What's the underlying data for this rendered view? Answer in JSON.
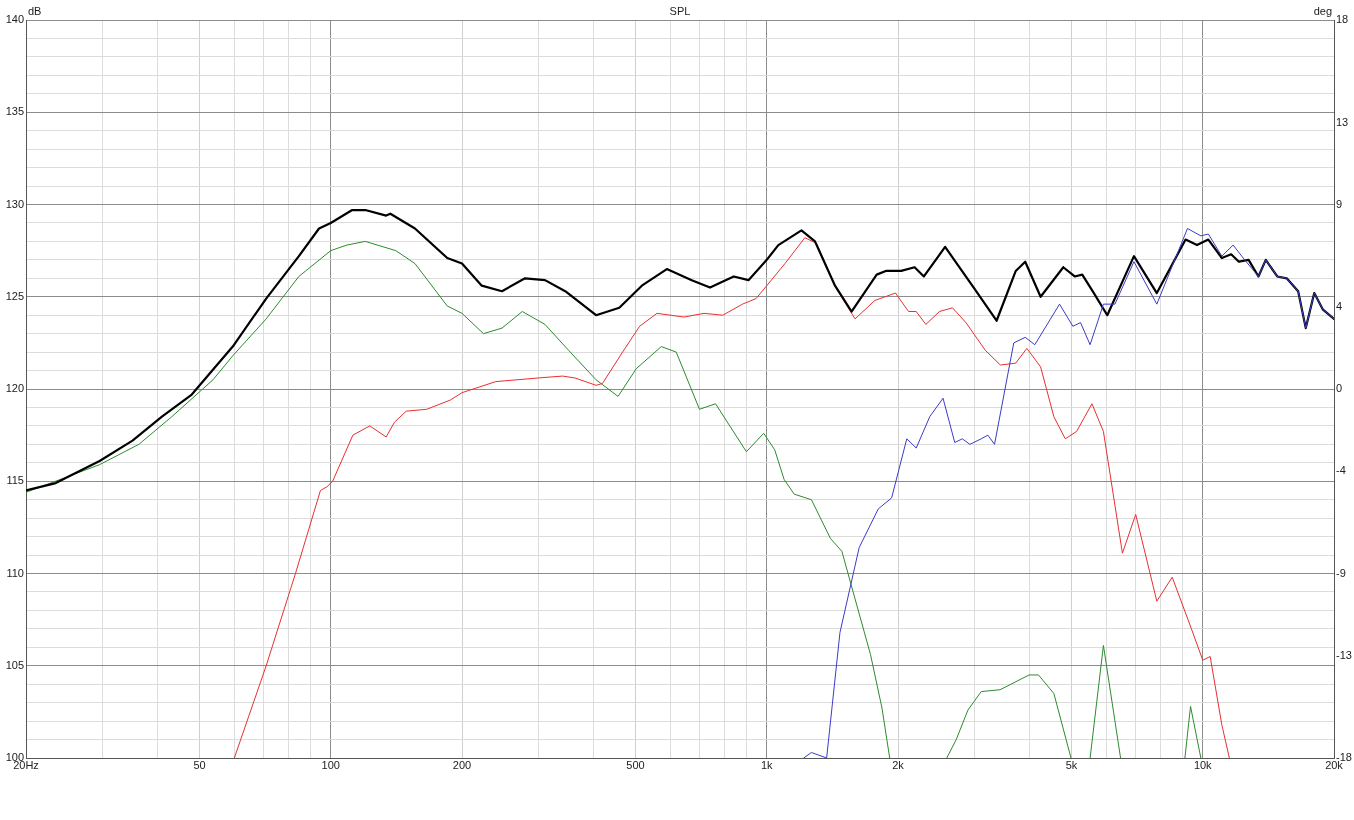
{
  "chart_data": {
    "type": "line",
    "title": "SPL",
    "ylabel": "dB",
    "y2label": "deg",
    "log": "x",
    "grid": true,
    "marker": "none",
    "line_style": "solid",
    "xlim": [
      20,
      20000
    ],
    "xticks": [
      {
        "value": 20,
        "label": "20Hz"
      },
      {
        "value": 30,
        "label": null
      },
      {
        "value": 40,
        "label": null
      },
      50,
      {
        "value": 60,
        "label": null
      },
      {
        "value": 70,
        "label": null
      },
      {
        "value": 80,
        "label": null
      },
      {
        "value": 90,
        "label": null
      },
      100,
      200,
      {
        "value": 300,
        "label": null
      },
      {
        "value": 400,
        "label": null
      },
      500,
      {
        "value": 600,
        "label": null
      },
      {
        "value": 700,
        "label": null
      },
      {
        "value": 800,
        "label": null
      },
      {
        "value": 900,
        "label": null
      },
      {
        "value": 1000,
        "label": "1k"
      },
      {
        "value": 2000,
        "label": "2k"
      },
      {
        "value": 3000,
        "label": null
      },
      {
        "value": 4000,
        "label": null
      },
      {
        "value": 5000,
        "label": "5k"
      },
      {
        "value": 6000,
        "label": null
      },
      {
        "value": 7000,
        "label": null
      },
      {
        "value": 8000,
        "label": null
      },
      {
        "value": 9000,
        "label": null
      },
      {
        "value": 10000,
        "label": "10k"
      },
      {
        "value": 20000,
        "label": "20k"
      }
    ],
    "ylim": [
      100,
      140
    ],
    "yticks": [
      100,
      {
        "value": 101,
        "label": null
      },
      {
        "value": 102,
        "label": null
      },
      {
        "value": 103,
        "label": null
      },
      {
        "value": 104,
        "label": null
      },
      105,
      {
        "value": 106,
        "label": null
      },
      {
        "value": 107,
        "label": null
      },
      {
        "value": 108,
        "label": null
      },
      {
        "value": 109,
        "label": null
      },
      110,
      {
        "value": 111,
        "label": null
      },
      {
        "value": 112,
        "label": null
      },
      {
        "value": 113,
        "label": null
      },
      {
        "value": 114,
        "label": null
      },
      115,
      {
        "value": 116,
        "label": null
      },
      {
        "value": 117,
        "label": null
      },
      {
        "value": 118,
        "label": null
      },
      {
        "value": 119,
        "label": null
      },
      120,
      {
        "value": 121,
        "label": null
      },
      {
        "value": 122,
        "label": null
      },
      {
        "value": 123,
        "label": null
      },
      {
        "value": 124,
        "label": null
      },
      125,
      {
        "value": 126,
        "label": null
      },
      {
        "value": 127,
        "label": null
      },
      {
        "value": 128,
        "label": null
      },
      {
        "value": 129,
        "label": null
      },
      130,
      {
        "value": 131,
        "label": null
      },
      {
        "value": 132,
        "label": null
      },
      {
        "value": 133,
        "label": null
      },
      {
        "value": 134,
        "label": null
      },
      135,
      {
        "value": 136,
        "label": null
      },
      {
        "value": 137,
        "label": null
      },
      {
        "value": 138,
        "label": null
      },
      {
        "value": 139,
        "label": null
      },
      140
    ],
    "y2lim": [
      -18,
      18
    ],
    "y2ticks": [
      -18,
      -13,
      -9,
      -4,
      0,
      4,
      9,
      13,
      18
    ],
    "series": [
      {
        "color": "#000000",
        "x": [
          20,
          23.4,
          29.5,
          35.1,
          41,
          48,
          59.6,
          71.1,
          84.5,
          94,
          100,
          112,
          120,
          134,
          137,
          156,
          185,
          200,
          222,
          247,
          279,
          310,
          345,
          406,
          459,
          517,
          590,
          673,
          741,
          840,
          908,
          1000,
          1063,
          1201,
          1290,
          1434,
          1565,
          1787,
          1875,
          2034,
          2183,
          2293,
          2565,
          2983,
          3366,
          3725,
          3916,
          4247,
          4788,
          5085,
          5292,
          5627,
          6040,
          6953,
          7846,
          9132,
          9700,
          10300,
          11060,
          11620,
          12100,
          12740,
          13420,
          13950,
          14820,
          15580,
          16550,
          17230,
          18020,
          18870,
          20000
        ],
        "values": [
          114.5,
          114.9,
          116.1,
          117.2,
          118.5,
          119.7,
          122.3,
          124.9,
          127.2,
          128.7,
          129.0,
          129.7,
          129.7,
          129.4,
          129.5,
          128.7,
          127.1,
          126.8,
          125.6,
          125.3,
          126.0,
          125.9,
          125.3,
          124.0,
          124.4,
          125.6,
          126.5,
          125.9,
          125.5,
          126.1,
          125.9,
          127.0,
          127.8,
          128.6,
          128.0,
          125.6,
          124.2,
          126.2,
          126.4,
          126.4,
          126.6,
          126.1,
          127.7,
          125.5,
          123.7,
          126.4,
          126.9,
          125.0,
          126.6,
          126.1,
          126.2,
          125.2,
          124.0,
          127.2,
          125.2,
          128.1,
          127.8,
          128.1,
          127.1,
          127.3,
          126.9,
          127.0,
          126.1,
          127.0,
          126.1,
          126.0,
          125.3,
          123.3,
          125.2,
          124.3,
          123.8
        ]
      },
      {
        "color": "#3c3cc8",
        "x": [
          1216,
          1266,
          1372,
          1472,
          1629,
          1802,
          1934,
          2095,
          2202,
          2365,
          2537,
          2699,
          2809,
          2924,
          3103,
          3215,
          3330,
          3686,
          3916,
          4119,
          4694,
          5036,
          5244,
          5516,
          5918,
          6290,
          6953,
          7846,
          9226,
          9900,
          10300,
          11060,
          11740,
          12480,
          13420,
          13950,
          14820,
          15580,
          16550,
          17230,
          18020,
          18870,
          20000
        ],
        "values": [
          100.0,
          100.3,
          100.0,
          106.8,
          111.4,
          113.5,
          114.1,
          117.3,
          116.8,
          118.5,
          119.5,
          117.1,
          117.3,
          117.0,
          117.3,
          117.5,
          117.0,
          122.5,
          122.8,
          122.4,
          124.6,
          123.4,
          123.6,
          122.4,
          124.6,
          124.6,
          126.9,
          124.6,
          128.7,
          128.3,
          128.4,
          127.2,
          127.8,
          127.0,
          126.1,
          127.0,
          126.1,
          126.0,
          125.3,
          123.3,
          125.2,
          124.3,
          123.8
        ]
      },
      {
        "color": "#e83030",
        "x": [
          60.1,
          71.1,
          83,
          94.7,
          98,
          101,
          112.4,
          122.9,
          134,
          140,
          149,
          166,
          188,
          200,
          239,
          300,
          340,
          363,
          406,
          420,
          467,
          511,
          560,
          646,
          718,
          793,
          880,
          945,
          1000,
          1101,
          1223,
          1300,
          1447,
          1594,
          1770,
          1973,
          2115,
          2202,
          2317,
          2489,
          2667,
          2863,
          3171,
          3434,
          3723,
          3950,
          4247,
          4555,
          4839,
          5136,
          5570,
          5918,
          6543,
          7018,
          7846,
          8510,
          9420,
          10000,
          10400,
          11060,
          11510
        ],
        "values": [
          100.0,
          105.0,
          110.0,
          114.5,
          114.7,
          115.0,
          117.5,
          118.0,
          117.4,
          118.2,
          118.8,
          118.9,
          119.4,
          119.8,
          120.4,
          120.6,
          120.7,
          120.6,
          120.2,
          120.3,
          122.0,
          123.4,
          124.1,
          123.9,
          124.1,
          124.0,
          124.6,
          124.9,
          125.6,
          126.8,
          128.2,
          127.9,
          125.4,
          123.8,
          124.8,
          125.2,
          124.2,
          124.2,
          123.5,
          124.2,
          124.4,
          123.6,
          122.1,
          121.3,
          121.4,
          122.2,
          121.2,
          118.5,
          117.3,
          117.7,
          119.2,
          117.7,
          111.1,
          113.2,
          108.5,
          109.8,
          107.0,
          105.3,
          105.5,
          101.8,
          100.0
        ]
      },
      {
        "color": "#2e8b2e",
        "x": [
          20,
          29.5,
          36.3,
          43.2,
          53.7,
          59.6,
          71.1,
          84.5,
          100,
          108.8,
          120,
          141,
          156,
          185,
          200,
          224,
          247,
          275,
          310,
          351,
          406,
          456,
          502,
          573,
          620,
          701,
          763,
          898,
          984,
          1043,
          1096,
          1156,
          1266,
          1400,
          1487,
          1730,
          1838,
          1914,
          2200,
          2588,
          2720,
          2894,
          3104,
          3429,
          3996,
          4200,
          4555,
          4987,
          5250,
          5516,
          5918,
          6479,
          8000,
          9100,
          9375,
          9900
        ],
        "values": [
          114.4,
          115.9,
          117.0,
          118.5,
          120.5,
          121.8,
          123.8,
          126.1,
          127.5,
          127.8,
          128.0,
          127.5,
          126.8,
          124.5,
          124.1,
          123.0,
          123.3,
          124.2,
          123.5,
          122.1,
          120.5,
          119.6,
          121.1,
          122.3,
          122.0,
          118.9,
          119.2,
          116.6,
          117.6,
          116.7,
          115.1,
          114.3,
          114.0,
          111.9,
          111.2,
          105.6,
          102.7,
          100.0,
          null,
          100.0,
          101.0,
          102.6,
          103.6,
          103.7,
          104.5,
          104.5,
          103.5,
          100.0,
          null,
          100.0,
          106.1,
          100.0,
          null,
          100.0,
          102.8,
          100.0
        ]
      }
    ]
  }
}
